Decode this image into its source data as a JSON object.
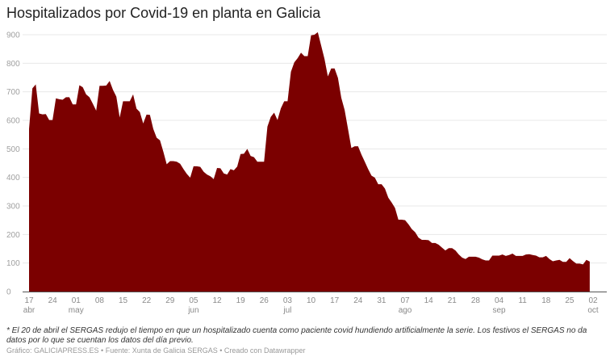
{
  "title": "Hospitalizados por Covid-19 en planta en Galicia",
  "chart_data": {
    "type": "area",
    "title": "Hospitalizados por Covid-19 en planta en Galicia",
    "xlabel": "",
    "ylabel": "",
    "frequency": "daily",
    "x_start": "17 abr",
    "x_end": "01 oct",
    "ylim": [
      0,
      900
    ],
    "y_ticks": [
      "0",
      "100",
      "200",
      "300",
      "400",
      "500",
      "600",
      "700",
      "800",
      "900"
    ],
    "x_ticks": [
      {
        "day": "17",
        "month": "abr"
      },
      {
        "day": "24"
      },
      {
        "day": "01",
        "month": "may"
      },
      {
        "day": "08"
      },
      {
        "day": "15"
      },
      {
        "day": "22"
      },
      {
        "day": "29"
      },
      {
        "day": "05",
        "month": "jun"
      },
      {
        "day": "12"
      },
      {
        "day": "19"
      },
      {
        "day": "26"
      },
      {
        "day": "03",
        "month": "jul"
      },
      {
        "day": "10"
      },
      {
        "day": "17"
      },
      {
        "day": "24"
      },
      {
        "day": "31"
      },
      {
        "day": "07",
        "month": "ago"
      },
      {
        "day": "14"
      },
      {
        "day": "21"
      },
      {
        "day": "28"
      },
      {
        "day": "04",
        "month": "sep"
      },
      {
        "day": "11"
      },
      {
        "day": "18"
      },
      {
        "day": "25"
      },
      {
        "day": "02",
        "month": "oct"
      }
    ],
    "grid": true,
    "fill_color": "#7b0000",
    "values": [
      570,
      712,
      726,
      624,
      621,
      622,
      601,
      601,
      677,
      674,
      672,
      681,
      681,
      656,
      656,
      723,
      716,
      691,
      681,
      658,
      634,
      721,
      721,
      722,
      738,
      707,
      683,
      610,
      667,
      667,
      667,
      691,
      641,
      629,
      589,
      620,
      619,
      570,
      539,
      530,
      490,
      446,
      457,
      457,
      455,
      448,
      429,
      412,
      399,
      439,
      439,
      437,
      420,
      410,
      404,
      394,
      433,
      432,
      414,
      410,
      429,
      425,
      438,
      482,
      483,
      500,
      475,
      471,
      455,
      455,
      455,
      578,
      612,
      627,
      601,
      642,
      667,
      667,
      770,
      803,
      818,
      837,
      825,
      825,
      898,
      900,
      909,
      862,
      815,
      754,
      782,
      782,
      749,
      679,
      636,
      570,
      503,
      509,
      509,
      480,
      455,
      429,
      406,
      399,
      376,
      376,
      361,
      329,
      312,
      293,
      252,
      252,
      250,
      236,
      219,
      208,
      189,
      181,
      181,
      180,
      170,
      170,
      164,
      154,
      144,
      152,
      152,
      144,
      130,
      119,
      114,
      122,
      122,
      122,
      119,
      113,
      109,
      109,
      126,
      126,
      126,
      130,
      125,
      128,
      133,
      125,
      125,
      125,
      130,
      131,
      128,
      126,
      120,
      120,
      125,
      114,
      106,
      109,
      111,
      104,
      104,
      117,
      107,
      98,
      98,
      95,
      111,
      105
    ]
  },
  "footnote": "* El 20 de abril el SERGAS redujo el tiempo en que un hospitalizado cuenta como paciente covid hundiendo artificialmente la serie. Los festivos el SERGAS no da datos por lo que se cuentan los datos del día previo.",
  "credits": "Gráfico: GALICIAPRESS.ES • Fuente: Xunta de Galicia SERGAS • Creado con Datawrapper"
}
